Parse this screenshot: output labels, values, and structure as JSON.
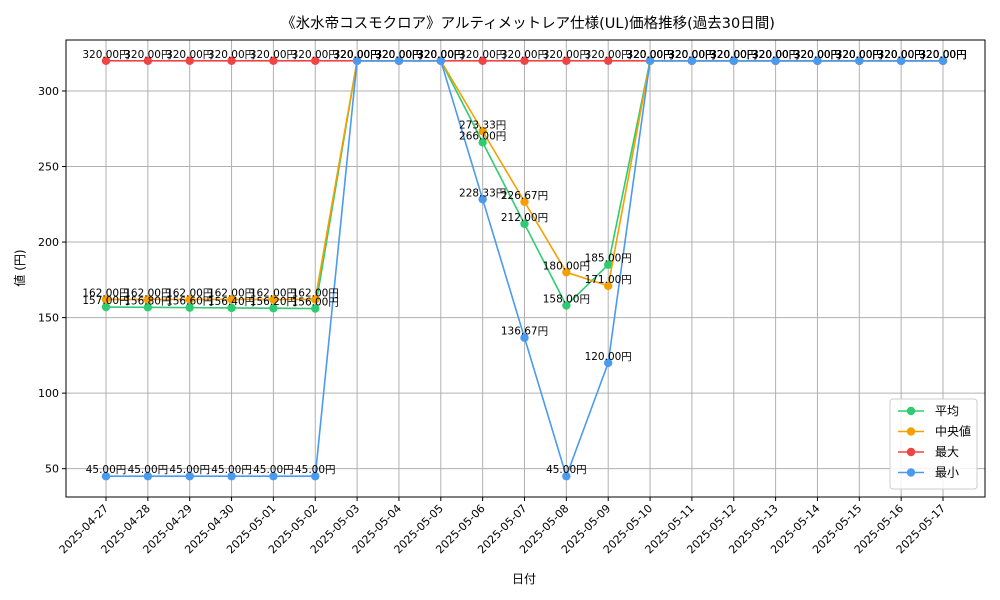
{
  "chart_data": {
    "type": "line",
    "title": "《氷水帝コスモクロア》アルティメットレア仕様(UL)価格推移(過去30日間)",
    "xlabel": "日付",
    "ylabel": "値 (円)",
    "ylim": [
      31.25,
      333.75
    ],
    "yticks": [
      50,
      100,
      150,
      200,
      250,
      300
    ],
    "grid": true,
    "legend_position": "lower-right",
    "value_suffix": "円",
    "categories": [
      "2025-04-27",
      "2025-04-28",
      "2025-04-29",
      "2025-04-30",
      "2025-05-01",
      "2025-05-02",
      "2025-05-03",
      "2025-05-04",
      "2025-05-05",
      "2025-05-06",
      "2025-05-07",
      "2025-05-08",
      "2025-05-09",
      "2025-05-10",
      "2025-05-11",
      "2025-05-12",
      "2025-05-13",
      "2025-05-14",
      "2025-05-15",
      "2025-05-16",
      "2025-05-17"
    ],
    "series": [
      {
        "name": "平均",
        "color": "#2ecc71",
        "values": [
          157.0,
          156.8,
          156.6,
          156.4,
          156.2,
          156.0,
          320.0,
          320.0,
          320.0,
          266.0,
          212.0,
          158.0,
          185.0,
          320.0,
          320.0,
          320.0,
          320.0,
          320.0,
          320.0,
          320.0,
          320.0
        ],
        "labels": [
          "157.00円",
          "156.80円",
          "156.60円",
          "156.40円",
          "156.20円",
          "156.00円",
          "320.00円",
          "320.00円",
          "320.00円",
          "266.00円",
          "212.00円",
          "158.00円",
          "185.00円",
          "320.00円",
          "320.00円",
          "320.00円",
          "320.00円",
          "320.00円",
          "320.00円",
          "320.00円",
          "320.00円"
        ]
      },
      {
        "name": "中央値",
        "color": "#f5a000",
        "values": [
          162.0,
          162.0,
          162.0,
          162.0,
          162.0,
          162.0,
          320.0,
          320.0,
          320.0,
          273.33,
          226.67,
          180.0,
          171.0,
          320.0,
          320.0,
          320.0,
          320.0,
          320.0,
          320.0,
          320.0,
          320.0
        ],
        "labels": [
          "162.00円",
          "162.00円",
          "162.00円",
          "162.00円",
          "162.00円",
          "162.00円",
          "320.00円",
          "320.00円",
          "320.00円",
          "273.33円",
          "226.67円",
          "180.00円",
          "171.00円",
          "320.00円",
          "320.00円",
          "320.00円",
          "320.00円",
          "320.00円",
          "320.00円",
          "320.00円",
          "320.00円"
        ]
      },
      {
        "name": "最大",
        "color": "#ef4444",
        "values": [
          320.0,
          320.0,
          320.0,
          320.0,
          320.0,
          320.0,
          320.0,
          320.0,
          320.0,
          320.0,
          320.0,
          320.0,
          320.0,
          320.0,
          320.0,
          320.0,
          320.0,
          320.0,
          320.0,
          320.0,
          320.0
        ],
        "labels": [
          "320.00円",
          "320.00円",
          "320.00円",
          "320.00円",
          "320.00円",
          "320.00円",
          "320.00円",
          "320.00円",
          "320.00円",
          "320.00円",
          "320.00円",
          "320.00円",
          "320.00円",
          "320.00円",
          "320.00円",
          "320.00円",
          "320.00円",
          "320.00円",
          "320.00円",
          "320.00円",
          "320.00円"
        ]
      },
      {
        "name": "最小",
        "color": "#4a9bf0",
        "values": [
          45.0,
          45.0,
          45.0,
          45.0,
          45.0,
          45.0,
          320.0,
          320.0,
          320.0,
          228.33,
          136.67,
          45.0,
          120.0,
          320.0,
          320.0,
          320.0,
          320.0,
          320.0,
          320.0,
          320.0,
          320.0
        ],
        "labels": [
          "45.00円",
          "45.00円",
          "45.00円",
          "45.00円",
          "45.00円",
          "45.00円",
          "320.00円",
          "320.00円",
          "320.00円",
          "228.33円",
          "136.67円",
          "45.00円",
          "120.00円",
          "320.00円",
          "320.00円",
          "320.00円",
          "320.00円",
          "320.00円",
          "320.00円",
          "320.00円",
          "320.00円"
        ]
      }
    ]
  }
}
